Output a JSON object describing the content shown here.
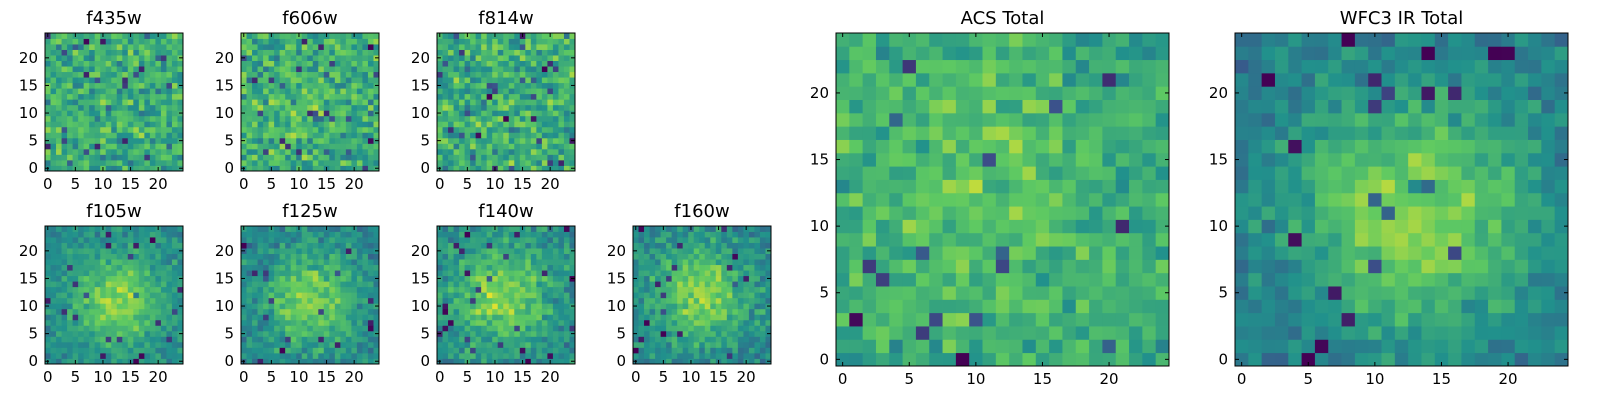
{
  "chart_data": {
    "type": "heatmap",
    "colormap": "viridis",
    "colormap_stops": [
      "#440154",
      "#3b528b",
      "#21918c",
      "#5ec962",
      "#fde725"
    ],
    "grid": false,
    "note": "pixel values are synthesized to match the visual texture; these images carry no printed numbers or colorbars",
    "panels": [
      {
        "title": "f435w",
        "xlim": [
          -0.5,
          24.5
        ],
        "ylim": [
          -0.5,
          24.5
        ],
        "xticks": [
          0,
          5,
          10,
          15,
          20
        ],
        "yticks": [
          0,
          5,
          10,
          15,
          20
        ],
        "grid_size": 25,
        "pattern": "noise",
        "seed": 11,
        "center": [
          12,
          12
        ],
        "sigma": 6,
        "peak": 0.0,
        "base": 0.62,
        "noise": 0.16
      },
      {
        "title": "f606w",
        "xlim": [
          -0.5,
          24.5
        ],
        "ylim": [
          -0.5,
          24.5
        ],
        "xticks": [
          0,
          5,
          10,
          15,
          20
        ],
        "yticks": [
          0,
          5,
          10,
          15,
          20
        ],
        "grid_size": 25,
        "pattern": "noise",
        "seed": 23,
        "center": [
          10,
          12
        ],
        "sigma": 5,
        "peak": 0.08,
        "base": 0.62,
        "noise": 0.16
      },
      {
        "title": "f814w",
        "xlim": [
          -0.5,
          24.5
        ],
        "ylim": [
          -0.5,
          24.5
        ],
        "xticks": [
          0,
          5,
          10,
          15,
          20
        ],
        "yticks": [
          0,
          5,
          10,
          15,
          20
        ],
        "grid_size": 25,
        "pattern": "noise",
        "seed": 37,
        "center": [
          12,
          12
        ],
        "sigma": 6,
        "peak": 0.0,
        "base": 0.62,
        "noise": 0.17
      },
      {
        "title": "f105w",
        "xlim": [
          -0.5,
          24.5
        ],
        "ylim": [
          -0.5,
          24.5
        ],
        "xticks": [
          0,
          5,
          10,
          15,
          20
        ],
        "yticks": [
          0,
          5,
          10,
          15,
          20
        ],
        "grid_size": 25,
        "pattern": "source",
        "seed": 41,
        "center": [
          13,
          11
        ],
        "sigma": 5.5,
        "peak": 0.35,
        "base": 0.48,
        "noise": 0.09
      },
      {
        "title": "f125w",
        "xlim": [
          -0.5,
          24.5
        ],
        "ylim": [
          -0.5,
          24.5
        ],
        "xticks": [
          0,
          5,
          10,
          15,
          20
        ],
        "yticks": [
          0,
          5,
          10,
          15,
          20
        ],
        "grid_size": 25,
        "pattern": "source",
        "seed": 53,
        "center": [
          12,
          11
        ],
        "sigma": 6,
        "peak": 0.35,
        "base": 0.45,
        "noise": 0.11
      },
      {
        "title": "f140w",
        "xlim": [
          -0.5,
          24.5
        ],
        "ylim": [
          -0.5,
          24.5
        ],
        "xticks": [
          0,
          5,
          10,
          15,
          20
        ],
        "yticks": [
          0,
          5,
          10,
          15,
          20
        ],
        "grid_size": 25,
        "pattern": "source",
        "seed": 67,
        "center": [
          11,
          12
        ],
        "sigma": 6,
        "peak": 0.35,
        "base": 0.48,
        "noise": 0.11
      },
      {
        "title": "f160w",
        "xlim": [
          -0.5,
          24.5
        ],
        "ylim": [
          -0.5,
          24.5
        ],
        "xticks": [
          0,
          5,
          10,
          15,
          20
        ],
        "yticks": [
          0,
          5,
          10,
          15,
          20
        ],
        "grid_size": 25,
        "pattern": "source",
        "seed": 79,
        "center": [
          12,
          12
        ],
        "sigma": 6,
        "peak": 0.35,
        "base": 0.46,
        "noise": 0.11
      },
      {
        "title": "ACS Total",
        "xlim": [
          -0.5,
          24.5
        ],
        "ylim": [
          -0.5,
          24.5
        ],
        "xticks": [
          0,
          5,
          10,
          15,
          20
        ],
        "yticks": [
          0,
          5,
          10,
          15,
          20
        ],
        "grid_size": 25,
        "pattern": "source",
        "seed": 97,
        "center": [
          11,
          13
        ],
        "sigma": 7,
        "peak": 0.12,
        "base": 0.6,
        "noise": 0.12
      },
      {
        "title": "WFC3 IR Total",
        "xlim": [
          -0.5,
          24.5
        ],
        "ylim": [
          -0.5,
          24.5
        ],
        "xticks": [
          0,
          5,
          10,
          15,
          20
        ],
        "yticks": [
          0,
          5,
          10,
          15,
          20
        ],
        "grid_size": 25,
        "pattern": "source",
        "seed": 113,
        "center": [
          13,
          11
        ],
        "sigma": 6,
        "peak": 0.42,
        "base": 0.42,
        "noise": 0.09
      }
    ]
  }
}
